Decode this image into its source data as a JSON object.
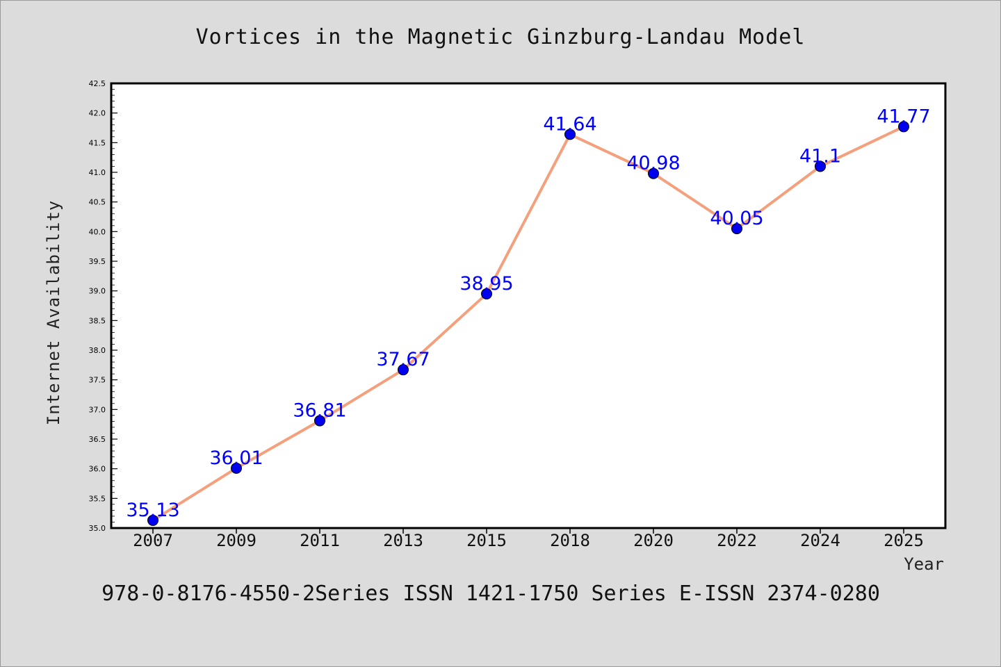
{
  "chart_data": {
    "type": "line",
    "title": "Vortices in the Magnetic Ginzburg-Landau Model",
    "xlabel": "Year",
    "ylabel": "Internet Availability",
    "categories": [
      "2007",
      "2009",
      "2011",
      "2013",
      "2015",
      "2018",
      "2020",
      "2022",
      "2024",
      "2025"
    ],
    "series": [
      {
        "values": [
          35.13,
          36.01,
          36.81,
          37.67,
          38.95,
          41.64,
          40.98,
          40.05,
          41.1,
          41.77
        ],
        "line_color": "#f4a07c",
        "marker_color": "#0000ee"
      }
    ],
    "data_labels": [
      "35.13",
      "36.01",
      "36.81",
      "37.67",
      "38.95",
      "41.64",
      "40.98",
      "40.05",
      "41.1",
      "41.77"
    ],
    "ylim": [
      35.0,
      42.5
    ],
    "yticks": [
      "35.0",
      "35.5",
      "36.0",
      "36.5",
      "37.0",
      "37.5",
      "38.0",
      "38.5",
      "39.0",
      "39.5",
      "40.0",
      "40.5",
      "41.0",
      "41.5",
      "42.0",
      "42.5"
    ],
    "grid": false,
    "label_color": "#0000ff"
  },
  "footer_text": "978-0-8176-4550-2Series ISSN 1421-1750 Series E-ISSN 2374-0280"
}
